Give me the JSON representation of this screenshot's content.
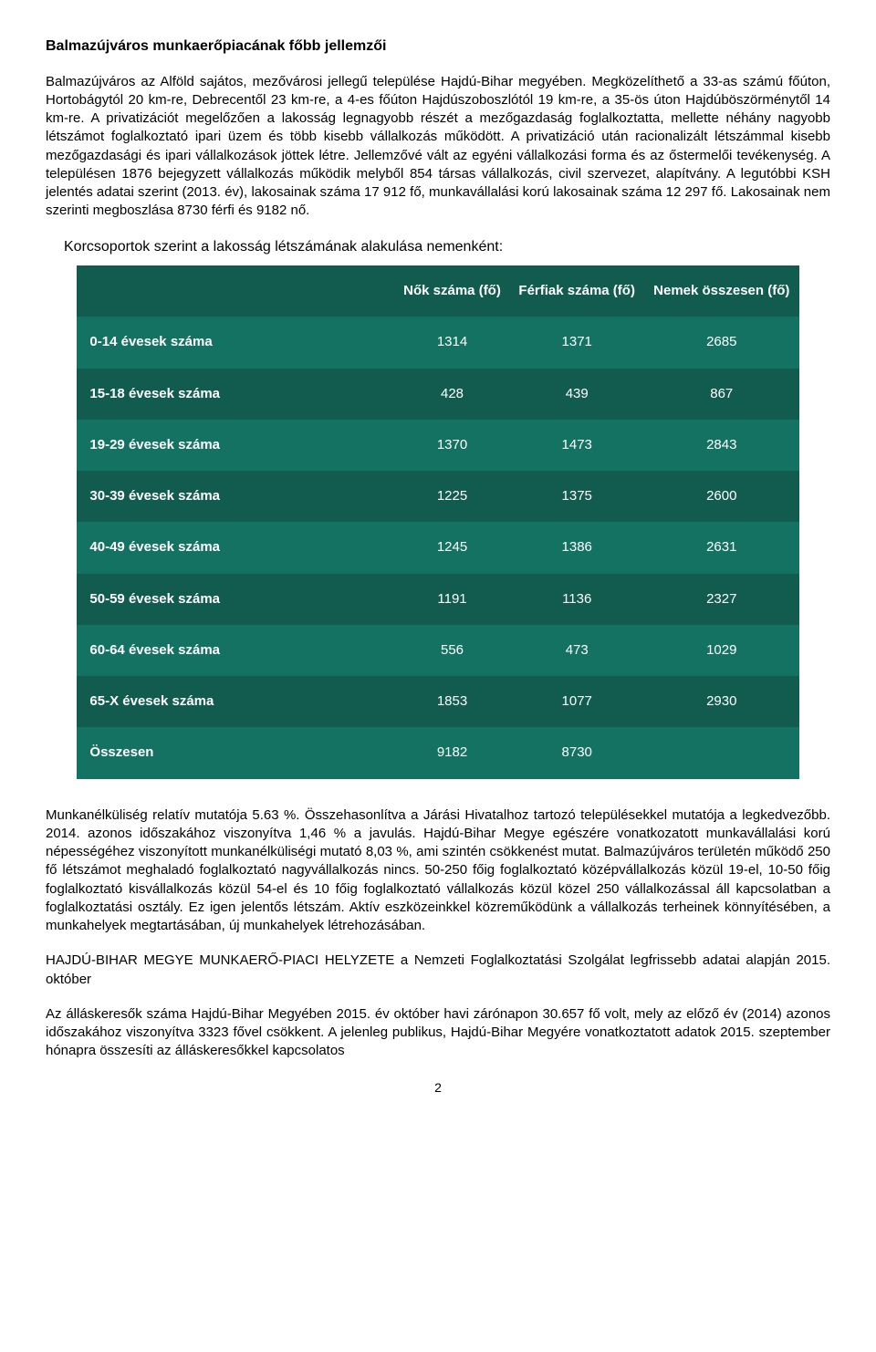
{
  "title": "Balmazújváros munkaerőpiacának főbb jellemzői",
  "paragraph1": "Balmazújváros az Alföld sajátos, mezővárosi jellegű települése Hajdú-Bihar megyében. Megközelíthető a 33-as számú főúton, Hortobágytól 20 km-re, Debrecentől 23 km-re, a 4-es főúton Hajdúszoboszlótól 19 km-re, a 35-ös úton Hajdúböszörménytől 14 km-re. A privatizációt megelőzően a lakosság legnagyobb részét a mezőgazdaság foglalkoztatta, mellette néhány nagyobb létszámot foglalkoztató ipari üzem és több kisebb vállalkozás működött. A privatizáció után racionalizált létszámmal kisebb mezőgazdasági és ipari vállalkozások jöttek létre. Jellemzővé vált az egyéni vállalkozási forma és az őstermelői tevékenység. A településen 1876 bejegyzett vállalkozás működik melyből 854 társas vállalkozás, civil szervezet, alapítvány. A legutóbbi KSH jelentés adatai szerint (2013. év), lakosainak száma 17 912 fő, munkavállalási korú lakosainak száma 12 297 fő. Lakosainak nem szerinti megboszlása 8730 férfi és 9182 nő.",
  "subheading": "Korcsoportok szerint a lakosság létszámának alakulása nemenként:",
  "table": {
    "header_bg": "#115c4e",
    "row_alt1": "#147263",
    "row_alt2": "#115c4e",
    "columns": [
      "",
      "Nők száma (fő)",
      "Férfiak száma (fő)",
      "Nemek összesen (fő)"
    ],
    "rows": [
      {
        "label": "0-14 évesek száma",
        "nok": "1314",
        "ferfiak": "1371",
        "ossz": "2685"
      },
      {
        "label": "15-18 évesek száma",
        "nok": "428",
        "ferfiak": "439",
        "ossz": "867"
      },
      {
        "label": "19-29 évesek száma",
        "nok": "1370",
        "ferfiak": "1473",
        "ossz": "2843"
      },
      {
        "label": "30-39 évesek száma",
        "nok": "1225",
        "ferfiak": "1375",
        "ossz": "2600"
      },
      {
        "label": "40-49 évesek száma",
        "nok": "1245",
        "ferfiak": "1386",
        "ossz": "2631"
      },
      {
        "label": "50-59 évesek száma",
        "nok": "1191",
        "ferfiak": "1136",
        "ossz": "2327"
      },
      {
        "label": "60-64 évesek száma",
        "nok": "556",
        "ferfiak": "473",
        "ossz": "1029"
      },
      {
        "label": "65-X évesek száma",
        "nok": "1853",
        "ferfiak": "1077",
        "ossz": "2930"
      }
    ],
    "footer": {
      "label": "Összesen",
      "nok": "9182",
      "ferfiak": "8730",
      "ossz": ""
    }
  },
  "paragraph2": "Munkanélküliség relatív mutatója 5.63 %. Összehasonlítva a Járási Hivatalhoz tartozó településekkel mutatója a legkedvezőbb. 2014. azonos időszakához viszonyítva 1,46 % a javulás. Hajdú-Bihar Megye egészére vonatkozatott munkavállalási korú népességéhez viszonyított munkanélküliségi mutató 8,03 %, ami szintén csökkenést mutat. Balmazújváros területén működő 250 fő létszámot meghaladó foglalkoztató nagyvállalkozás nincs. 50-250 főig foglalkoztató középvállalkozás közül 19-el, 10-50 főig foglalkoztató kisvállalkozás közül 54-el és 10 főig foglalkoztató vállalkozás közül közel 250 vállalkozással áll kapcsolatban a foglalkoztatási osztály. Ez igen jelentős létszám. Aktív eszközeinkkel közreműködünk a vállalkozás terheinek könnyítésében, a munkahelyek megtartásában, új munkahelyek létrehozásában.",
  "paragraph3": "HAJDÚ-BIHAR MEGYE MUNKAERŐ-PIACI HELYZETE a Nemzeti Foglalkoztatási Szolgálat legfrissebb adatai alapján 2015. október",
  "paragraph4": "Az álláskeresők száma Hajdú-Bihar Megyében 2015. év október havi zárónapon 30.657 fő volt, mely az előző év (2014) azonos időszakához viszonyítva 3323 fővel csökkent. A jelenleg publikus, Hajdú-Bihar Megyére vonatkoztatott adatok 2015. szeptember hónapra összesíti az álláskeresőkkel kapcsolatos",
  "page_number": "2"
}
